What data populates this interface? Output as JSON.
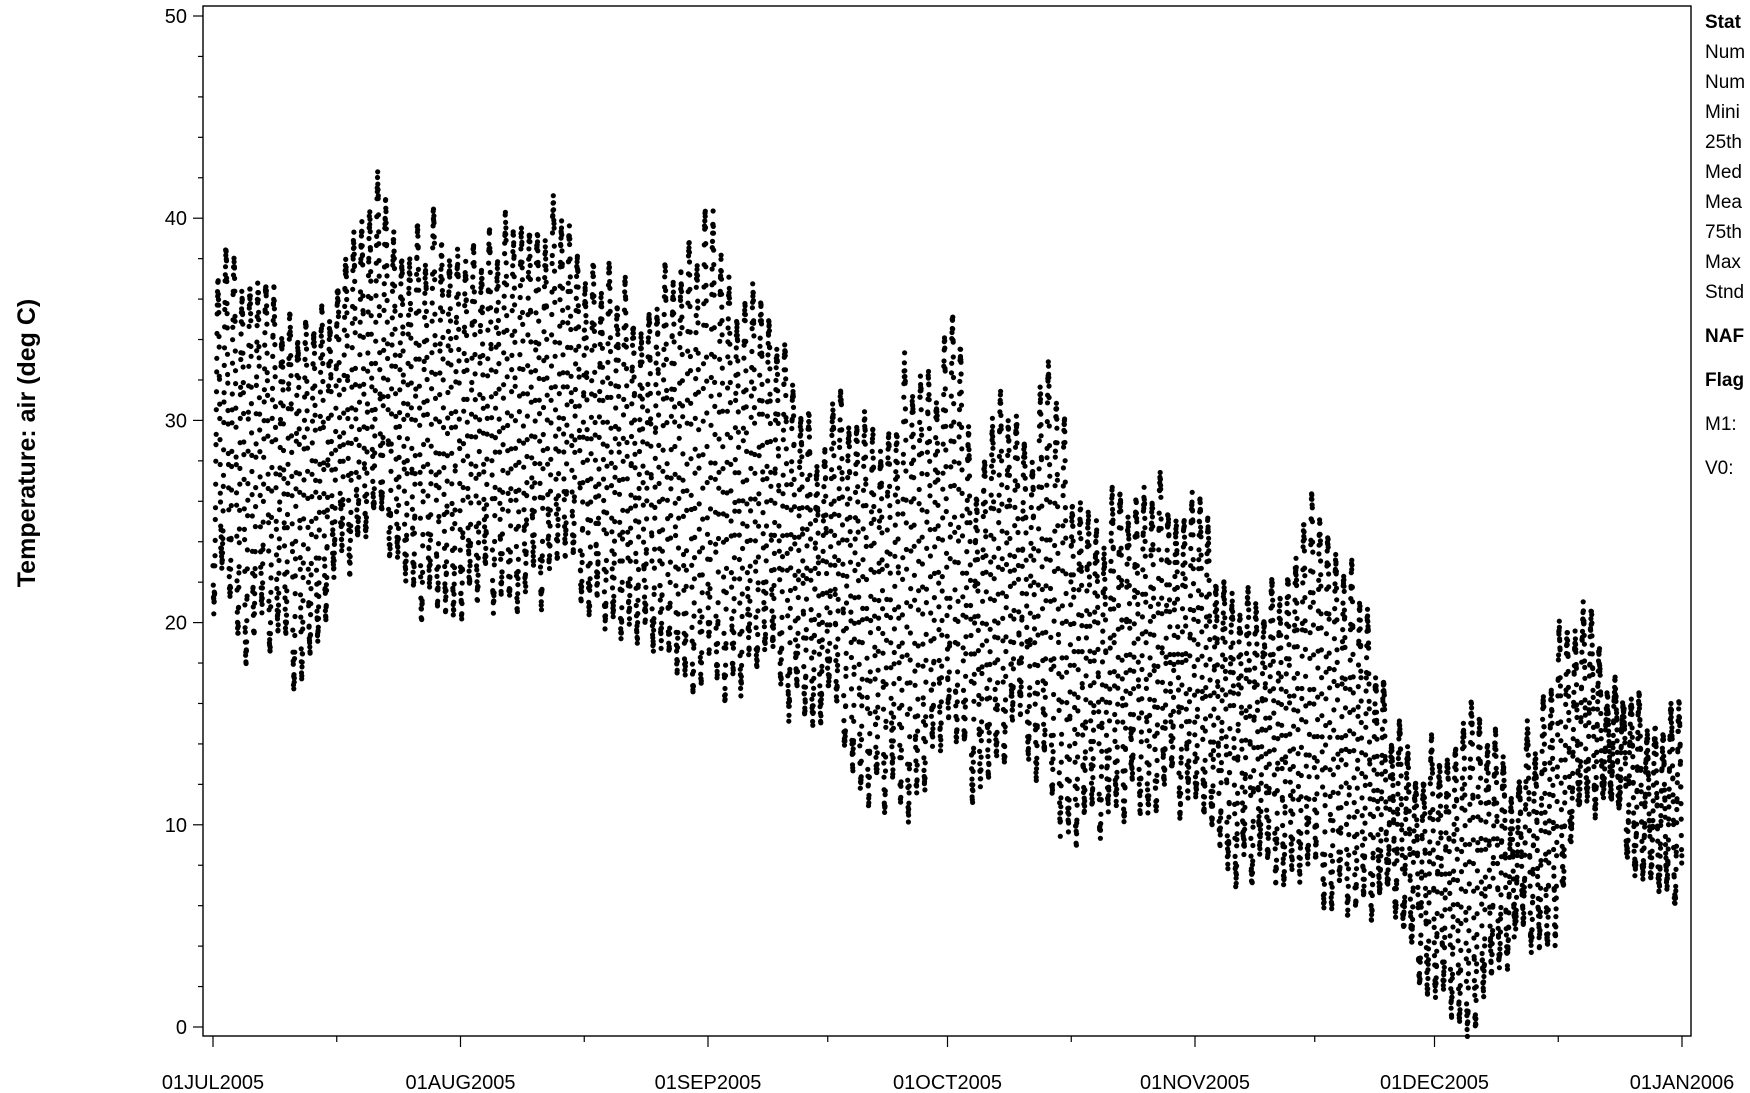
{
  "chart_data": {
    "type": "scatter",
    "title": "",
    "xlabel": "",
    "ylabel": "Temperature: air (deg C)",
    "x_type": "date",
    "xlim": [
      "2005-07-01",
      "2006-01-01"
    ],
    "ylim": [
      0,
      50
    ],
    "x_ticks": [
      "01JUL2005",
      "01AUG2005",
      "01SEP2005",
      "01OCT2005",
      "01NOV2005",
      "01DEC2005",
      "01JAN2006"
    ],
    "y_ticks": [
      0,
      10,
      20,
      30,
      40,
      50
    ],
    "grid": false,
    "legend": "none",
    "marker_color": "#000000",
    "series": [
      {
        "points_per_day": 48,
        "daily_envelope": {
          "x": [
            "2005-07-01",
            "2005-07-02",
            "2005-07-05",
            "2005-07-09",
            "2005-07-12",
            "2005-07-16",
            "2005-07-19",
            "2005-07-22",
            "2005-07-25",
            "2005-07-28",
            "2005-08-01",
            "2005-08-04",
            "2005-08-08",
            "2005-08-12",
            "2005-08-15",
            "2005-08-19",
            "2005-08-22",
            "2005-08-25",
            "2005-08-29",
            "2005-09-01",
            "2005-09-04",
            "2005-09-08",
            "2005-09-11",
            "2005-09-14",
            "2005-09-17",
            "2005-09-20",
            "2005-09-23",
            "2005-09-26",
            "2005-09-29",
            "2005-10-02",
            "2005-10-05",
            "2005-10-08",
            "2005-10-11",
            "2005-10-14",
            "2005-10-17",
            "2005-10-20",
            "2005-10-23",
            "2005-10-26",
            "2005-10-29",
            "2005-11-01",
            "2005-11-04",
            "2005-11-07",
            "2005-11-10",
            "2005-11-13",
            "2005-11-16",
            "2005-11-19",
            "2005-11-22",
            "2005-11-25",
            "2005-11-28",
            "2005-12-01",
            "2005-12-04",
            "2005-12-07",
            "2005-12-10",
            "2005-12-13",
            "2005-12-16",
            "2005-12-19",
            "2005-12-22",
            "2005-12-25",
            "2005-12-28",
            "2006-01-01"
          ],
          "min": [
            22,
            22,
            19,
            20,
            17,
            22,
            24,
            25,
            22,
            21,
            21,
            22,
            22,
            22,
            23,
            21,
            20,
            20,
            17,
            18,
            17,
            19,
            17,
            15,
            16,
            13,
            12,
            11,
            13,
            15,
            12,
            14,
            15,
            12,
            10,
            10,
            11,
            12,
            12,
            11,
            9,
            8,
            8,
            7,
            8,
            7,
            7,
            6,
            6,
            1,
            1,
            1,
            3,
            5,
            4,
            10,
            11,
            10,
            8,
            7
          ],
          "max": [
            36,
            40,
            36,
            35,
            33,
            35,
            41,
            41,
            38,
            39,
            39,
            38,
            39,
            40,
            38,
            37,
            35,
            36,
            38,
            39,
            36,
            35,
            33,
            28,
            31,
            29,
            29,
            32,
            31,
            35,
            26,
            31,
            28,
            32,
            25,
            24,
            26,
            27,
            25,
            27,
            21,
            20,
            21,
            24,
            26,
            22,
            21,
            15,
            13,
            14,
            14,
            15,
            11,
            14,
            18,
            21,
            18,
            16,
            14,
            17
          ]
        }
      }
    ]
  },
  "stats_panel": {
    "heading": "Stat",
    "lines": [
      "Num",
      "Num",
      "Mini",
      "25th",
      "Med",
      "Mea",
      "75th",
      "Max",
      "Stnd"
    ],
    "section": "NAF",
    "flags_heading": "Flag",
    "flags": [
      "M1:",
      "V0:"
    ]
  }
}
